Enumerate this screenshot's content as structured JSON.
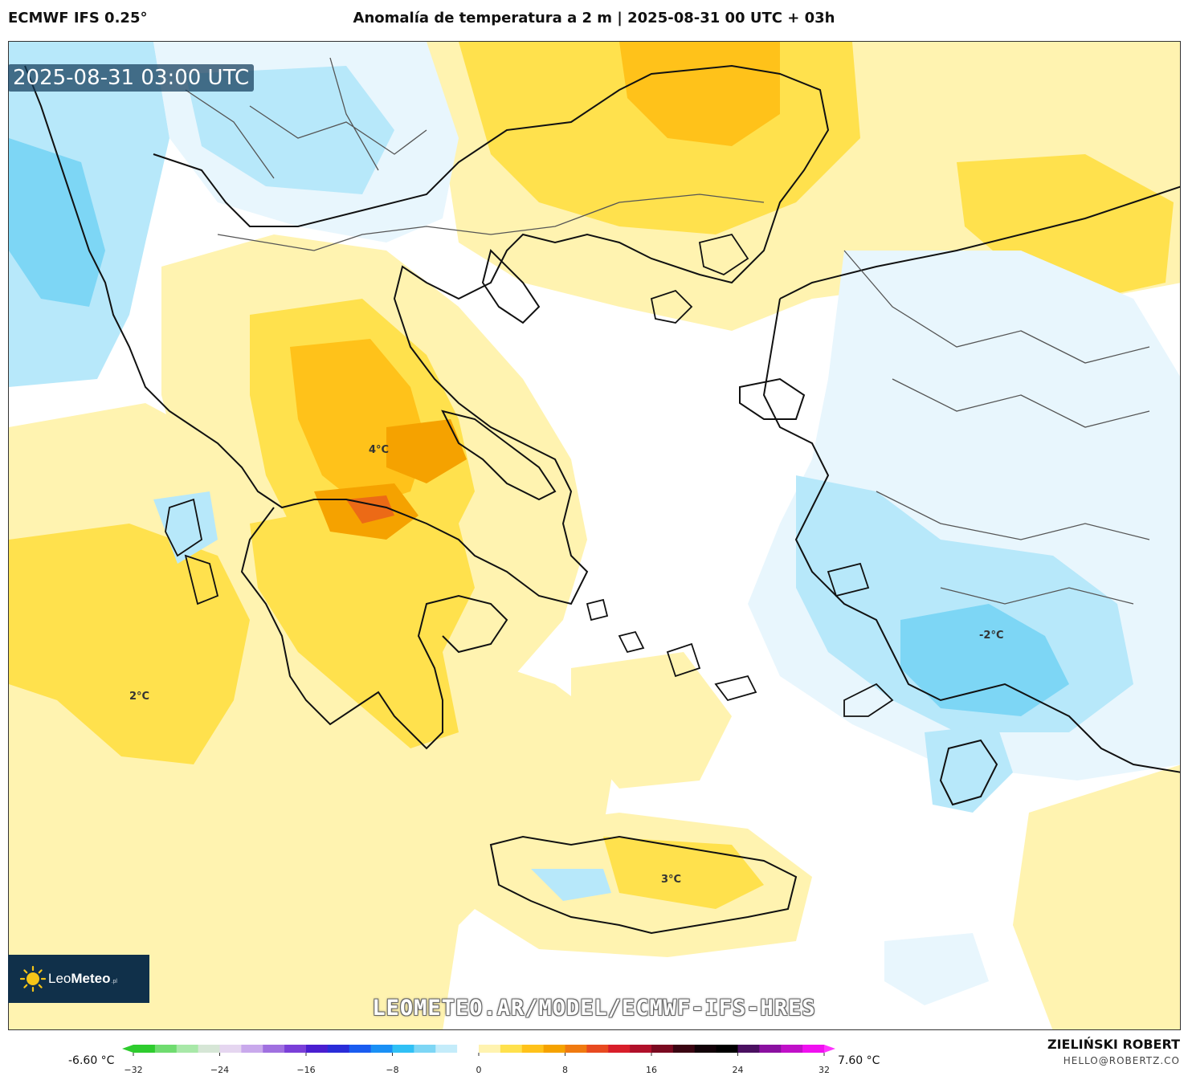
{
  "header": {
    "model": "ECMWF IFS 0.25°",
    "title": "Anomalía de temperatura a 2 m | 2025-08-31 00 UTC + 03h"
  },
  "map": {
    "valid_time": "2025-08-31 03:00 UTC",
    "contour_labels": [
      "4°C",
      "2°C",
      "3°C",
      "-2°C"
    ],
    "colors": {
      "warm_light": "#fff3b0",
      "warm_mid": "#ffe14d",
      "warm_strong": "#ffc21a",
      "warm_orange": "#f5a200",
      "warm_hot": "#ec6a16",
      "cool_light": "#e8f6fd",
      "cool_mid": "#b7e8fa",
      "cool_strong": "#7dd6f5",
      "cool_deep": "#3ec1f0",
      "coast": "#111111",
      "border": "#555555"
    }
  },
  "branding": {
    "logo_light": "Leo",
    "logo_bold": "Meteo",
    "logo_suffix": ".pl",
    "watermark_url": "LEOMETEO.AR/MODEL/ECMWF-IFS-HRES"
  },
  "legend": {
    "min_label": "-6.60 °C",
    "max_label": "7.60 °C",
    "ticks": [
      "−32",
      "−24",
      "−16",
      "−8",
      "0",
      "8",
      "16",
      "24",
      "32"
    ],
    "colors": [
      "#2ecc2e",
      "#6fdc6f",
      "#a8e8a8",
      "#d6e6d6",
      "#e5d6f0",
      "#c9a9ec",
      "#a070e0",
      "#7a3fd8",
      "#4a1ed0",
      "#2a2cd8",
      "#1a5cf0",
      "#1a90f5",
      "#30c0f5",
      "#7dd6f5",
      "#c4ecfa",
      "#ffffff",
      "#fff3b0",
      "#ffe14d",
      "#ffc21a",
      "#f5a200",
      "#f07a10",
      "#e84a20",
      "#d81e2a",
      "#b0102a",
      "#7a0a20",
      "#3a0512",
      "#120208",
      "#000000",
      "#4a1060",
      "#8a10a0",
      "#c010c8",
      "#f010f0"
    ],
    "left_arrow_color": "#2ecc2e",
    "right_arrow_color": "#ff33ff"
  },
  "author": {
    "name": "ZIELIŃSKI ROBERT",
    "email": "HELLO@ROBERTZ.CO"
  }
}
